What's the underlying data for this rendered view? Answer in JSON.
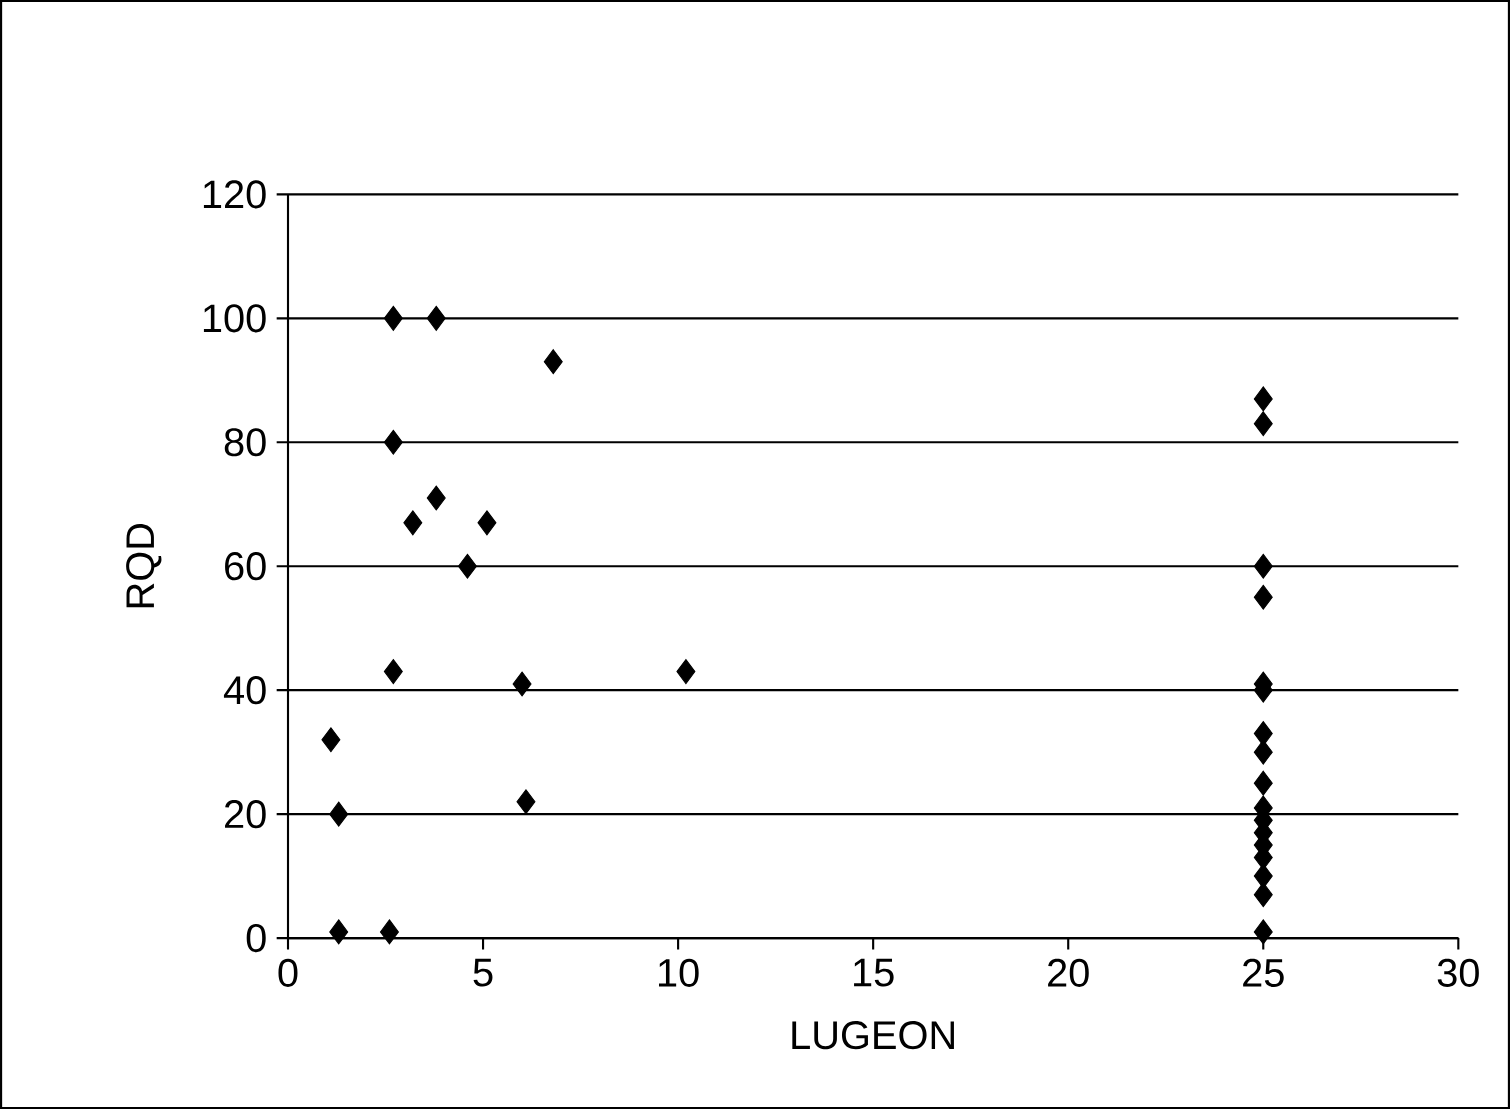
{
  "chart_data": {
    "type": "scatter",
    "xlabel": "LUGEON",
    "ylabel": "RQD",
    "xlim": [
      0,
      30
    ],
    "xticks": [
      0,
      5,
      10,
      15,
      20,
      25,
      30
    ],
    "ylim": [
      0,
      120
    ],
    "yticks": [
      0,
      20,
      40,
      60,
      80,
      100,
      120
    ],
    "grid": "y",
    "marker": "diamond",
    "series": [
      {
        "color": "#000000",
        "x": [
          2.7,
          3.8,
          6.8,
          2.7,
          3.8,
          3.2,
          5.1,
          4.6,
          2.7,
          6.0,
          10.2,
          1.1,
          1.3,
          6.1,
          1.3,
          2.6,
          25,
          25,
          25,
          25,
          25,
          25,
          25,
          25,
          25,
          25,
          25,
          25,
          25,
          25,
          25,
          25,
          25
        ],
        "values": [
          100,
          100,
          93,
          80,
          71,
          67,
          67,
          60,
          43,
          41,
          43,
          32,
          20,
          22,
          1,
          1,
          87,
          83,
          60,
          55,
          41,
          40,
          33,
          30,
          25,
          21,
          17,
          15,
          13,
          10,
          7,
          1,
          19
        ]
      }
    ]
  }
}
